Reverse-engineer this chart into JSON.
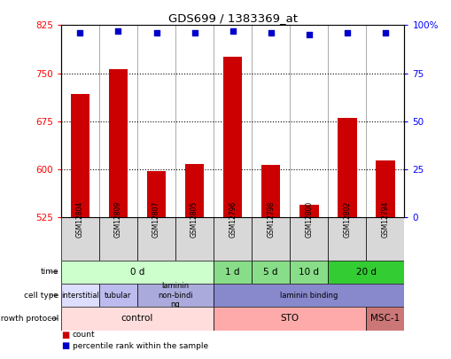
{
  "title": "GDS699 / 1383369_at",
  "samples": [
    "GSM12804",
    "GSM12809",
    "GSM12807",
    "GSM12805",
    "GSM12796",
    "GSM12798",
    "GSM12800",
    "GSM12802",
    "GSM12794"
  ],
  "counts": [
    718,
    756,
    597,
    608,
    775,
    607,
    545,
    680,
    614
  ],
  "percentiles": [
    96,
    97,
    96,
    96,
    97,
    96,
    95,
    96,
    96
  ],
  "ylim_left": [
    525,
    825
  ],
  "ylim_right": [
    0,
    100
  ],
  "yticks_left": [
    525,
    600,
    675,
    750,
    825
  ],
  "yticks_right": [
    0,
    25,
    50,
    75,
    100
  ],
  "bar_color": "#cc0000",
  "dot_color": "#0000cc",
  "time_groups": [
    {
      "label": "0 d",
      "samples": [
        0,
        1,
        2,
        3
      ],
      "color": "#ccffcc"
    },
    {
      "label": "1 d",
      "samples": [
        4
      ],
      "color": "#88dd88"
    },
    {
      "label": "5 d",
      "samples": [
        5
      ],
      "color": "#88dd88"
    },
    {
      "label": "10 d",
      "samples": [
        6
      ],
      "color": "#88dd88"
    },
    {
      "label": "20 d",
      "samples": [
        7,
        8
      ],
      "color": "#33cc33"
    }
  ],
  "cell_type_groups": [
    {
      "label": "interstitial",
      "samples": [
        0
      ],
      "color": "#ddddff"
    },
    {
      "label": "tubular",
      "samples": [
        1
      ],
      "color": "#bbbbee"
    },
    {
      "label": "laminin\nnon-bindi\nng",
      "samples": [
        2,
        3
      ],
      "color": "#aaaadd"
    },
    {
      "label": "laminin binding",
      "samples": [
        4,
        5,
        6,
        7,
        8
      ],
      "color": "#8888cc"
    }
  ],
  "growth_protocol_groups": [
    {
      "label": "control",
      "samples": [
        0,
        1,
        2,
        3
      ],
      "color": "#ffdddd"
    },
    {
      "label": "STO",
      "samples": [
        4,
        5,
        6,
        7
      ],
      "color": "#ffaaaa"
    },
    {
      "label": "MSC-1",
      "samples": [
        8
      ],
      "color": "#cc7777"
    }
  ],
  "row_labels": [
    "time",
    "cell type",
    "growth protocol"
  ],
  "legend_count_color": "#cc0000",
  "legend_pct_color": "#0000cc",
  "sample_bg_color": "#d8d8d8",
  "gridline_yticks": [
    600,
    675,
    750
  ]
}
